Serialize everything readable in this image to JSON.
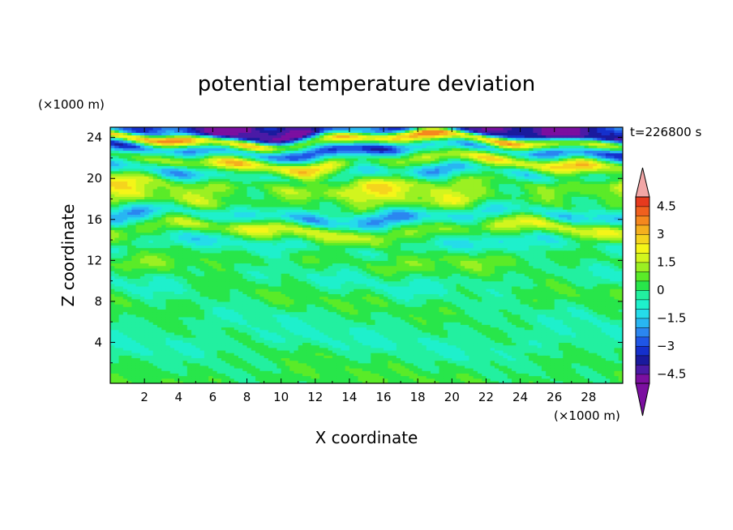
{
  "chart_data": {
    "type": "heatmap",
    "title": "potential temperature deviation",
    "xlabel": "X coordinate",
    "ylabel": "Z coordinate",
    "x_unit": "(×1000 m)",
    "y_unit": "(×1000 m)",
    "time_label": "t=226800 s",
    "xlim": [
      0,
      30
    ],
    "ylim": [
      0,
      25
    ],
    "x_ticks": [
      2,
      4,
      6,
      8,
      10,
      12,
      14,
      16,
      18,
      20,
      22,
      24,
      26,
      28
    ],
    "y_ticks": [
      4,
      8,
      12,
      16,
      20,
      24
    ],
    "colorbar": {
      "levels": [
        -5.0,
        -4.5,
        -4.0,
        -3.5,
        -3.0,
        -2.5,
        -2.0,
        -1.5,
        -1.0,
        -0.5,
        0,
        0.5,
        1.0,
        1.5,
        2.0,
        2.5,
        3.0,
        3.5,
        4.0,
        4.5,
        5.0
      ],
      "labels": [
        "4.5",
        "3",
        "1.5",
        "0",
        "−1.5",
        "−3",
        "−4.5"
      ],
      "label_values": [
        4.5,
        3,
        1.5,
        0,
        -1.5,
        -3,
        -4.5
      ],
      "colors": [
        "#7b0fa0",
        "#4a1aa6",
        "#1a1a9e",
        "#1530cc",
        "#1f56e6",
        "#2b86f0",
        "#28b6f2",
        "#25dcea",
        "#1ef0cc",
        "#22f0a0",
        "#28e64a",
        "#5aeb28",
        "#9bf022",
        "#d2f51e",
        "#f5f518",
        "#f5d41e",
        "#f5b01e",
        "#f5881e",
        "#f0601e",
        "#e63a1e",
        "#f2a6a6"
      ],
      "under_color": "#7b0fa0",
      "over_color": "#f2a6a6"
    },
    "layers": [
      {
        "z": 0.5,
        "value": 0.3
      },
      {
        "z": 2.0,
        "value": 0.1
      },
      {
        "z": 4.0,
        "value": -0.4
      },
      {
        "z": 6.0,
        "value": -0.2
      },
      {
        "z": 8.0,
        "value": 0.2
      },
      {
        "z": 10.0,
        "value": -0.3
      },
      {
        "z": 12.0,
        "value": 0.5
      },
      {
        "z": 13.5,
        "value": -0.6
      },
      {
        "z": 15.0,
        "value": 1.3
      },
      {
        "z": 16.3,
        "value": -1.4
      },
      {
        "z": 17.8,
        "value": 0.9
      },
      {
        "z": 19.2,
        "value": 1.4
      },
      {
        "z": 20.5,
        "value": -0.6
      },
      {
        "z": 21.6,
        "value": 1.6
      },
      {
        "z": 22.8,
        "value": -2.4
      },
      {
        "z": 23.8,
        "value": 2.2
      },
      {
        "z": 24.6,
        "value": -3.5
      }
    ]
  }
}
